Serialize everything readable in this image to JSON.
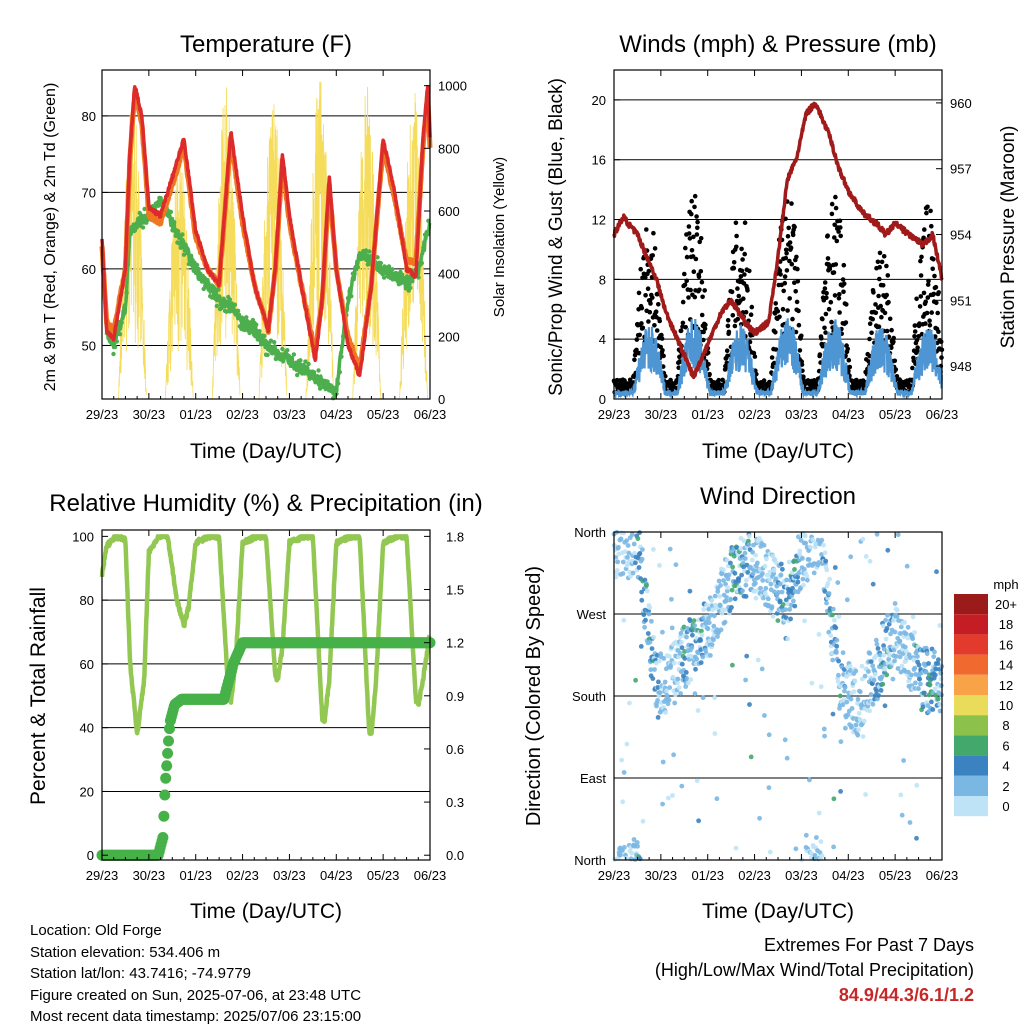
{
  "colors": {
    "temp2m": "#dd2a2a",
    "temp9m": "#f07722",
    "dewpoint": "#4cae4c",
    "solar": "#f5dc5a",
    "wind": "#4d96d3",
    "gust": "#000000",
    "pressure": "#a11a1a",
    "rh": "#92c752",
    "precip": "#46b148"
  },
  "panels": {
    "temperature": {
      "title": "Temperature (F)",
      "xlabel": "Time (Day/UTC)",
      "ylabel_left": "2m & 9m T (Red, Orange) & 2m Td (Green)",
      "ylabel_right": "Solar Insolation (Yellow)"
    },
    "winds": {
      "title": "Winds (mph) & Pressure (mb)",
      "xlabel": "Time (Day/UTC)",
      "ylabel_left": "Sonic/Prop Wind & Gust (Blue, Black)",
      "ylabel_right": "Station Pressure (Maroon)"
    },
    "humidity": {
      "title": "Relative Humidity (%) & Precipitation (in)",
      "xlabel": "Time (Day/UTC)",
      "ylabel_left": "Percent & Total Rainfall"
    },
    "direction": {
      "title": "Wind Direction",
      "xlabel": "Time (Day/UTC)",
      "ylabel_left": "Direction (Colored By Speed)"
    }
  },
  "legend": {
    "title": "mph",
    "labels": [
      "20+",
      "18",
      "16",
      "14",
      "12",
      "10",
      "8",
      "6",
      "4",
      "2",
      "0"
    ],
    "colors": [
      "#9b1b1b",
      "#c41e24",
      "#e23a2c",
      "#f06a30",
      "#f9a349",
      "#e9dc5a",
      "#8cc24b",
      "#43a86b",
      "#3b82c0",
      "#7ab7e3",
      "#bfe3f6"
    ]
  },
  "info": {
    "location": "Location: Old Forge",
    "elevation": "Station elevation: 534.406 m",
    "latlon": "Station lat/lon: 43.7416; -74.9779",
    "created": "Figure created on Sun, 2025-07-06, at 23:48 UTC",
    "recent": "Most recent data timestamp: 2025/07/06 23:15:00"
  },
  "extremes": {
    "title": "Extremes For Past 7 Days",
    "subtitle": "(High/Low/Max Wind/Total Precipitation)",
    "values": "84.9/44.3/6.1/1.2"
  },
  "chart_data": [
    {
      "type": "line",
      "name": "temperature",
      "title": "Temperature (F)",
      "xlabel": "Time (Day/UTC)",
      "ylabel": "2m & 9m T (Red, Orange) & 2m Td (Green)",
      "y2label": "Solar Insolation (Yellow)",
      "x_ticks": [
        "29/23",
        "30/23",
        "01/23",
        "02/23",
        "03/23",
        "04/23",
        "05/23",
        "06/23"
      ],
      "xlim": [
        0,
        7
      ],
      "ylim": [
        43,
        86
      ],
      "y_ticks": [
        50,
        60,
        70,
        80
      ],
      "y2lim": [
        0,
        1050
      ],
      "y2_ticks": [
        0,
        200,
        400,
        600,
        800,
        1000
      ],
      "grid": true,
      "series": [
        {
          "name": "2m T",
          "axis": "left",
          "x": [
            0,
            0.1,
            0.25,
            0.5,
            0.6,
            0.7,
            0.85,
            1,
            1.25,
            1.5,
            1.75,
            2,
            2.25,
            2.5,
            2.75,
            3,
            3.25,
            3.55,
            3.7,
            3.85,
            4,
            4.25,
            4.55,
            4.7,
            4.85,
            5,
            5.25,
            5.5,
            5.75,
            6,
            6.25,
            6.5,
            6.7,
            6.85,
            6.95,
            7
          ],
          "y": [
            64,
            52,
            51,
            60,
            76,
            84,
            80,
            68,
            67,
            72,
            77,
            65,
            60,
            58,
            78,
            67,
            58,
            52,
            60,
            75,
            67,
            58,
            48,
            56,
            72,
            60,
            50,
            46,
            58,
            77,
            70,
            60,
            59,
            77,
            84,
            77
          ]
        },
        {
          "name": "9m T",
          "axis": "left",
          "x": [
            0,
            0.1,
            0.25,
            0.5,
            0.6,
            0.7,
            0.85,
            1,
            1.25,
            1.5,
            1.75,
            2,
            2.25,
            2.5,
            2.75,
            3,
            3.25,
            3.55,
            3.7,
            3.85,
            4,
            4.25,
            4.55,
            4.7,
            4.85,
            5,
            5.25,
            5.5,
            5.75,
            6,
            6.25,
            6.5,
            6.7,
            6.85,
            6.95,
            7
          ],
          "y": [
            63,
            53,
            52,
            60,
            75,
            83,
            79,
            67,
            66,
            71,
            76,
            64,
            60,
            58,
            77,
            66,
            58,
            52,
            60,
            74,
            66,
            58,
            49,
            56,
            71,
            60,
            51,
            47,
            58,
            76,
            69,
            61,
            61,
            76,
            83,
            76
          ]
        },
        {
          "name": "2m Td",
          "axis": "left",
          "x": [
            0,
            0.1,
            0.25,
            0.5,
            0.6,
            0.75,
            1,
            1.25,
            1.5,
            1.75,
            2,
            2.25,
            2.5,
            2.75,
            3,
            3.25,
            3.5,
            3.75,
            4,
            4.25,
            4.5,
            4.75,
            5,
            5.25,
            5.5,
            5.75,
            6,
            6.25,
            6.5,
            6.75,
            7
          ],
          "y": [
            62,
            52,
            50,
            55,
            65,
            66,
            67,
            69,
            66,
            63,
            60,
            58,
            56,
            55,
            53,
            52,
            50,
            49,
            48,
            47,
            46,
            45,
            44,
            56,
            62,
            61,
            60,
            59,
            58,
            60,
            66
          ]
        },
        {
          "name": "Solar Insolation",
          "axis": "right",
          "day_peaks": [
            [
              0.65,
              960
            ],
            [
              1.65,
              790
            ],
            [
              2.65,
              1010
            ],
            [
              3.65,
              980
            ],
            [
              4.65,
              1030
            ],
            [
              5.65,
              1010
            ],
            [
              6.65,
              1000
            ]
          ]
        }
      ]
    },
    {
      "type": "scatter",
      "name": "winds",
      "title": "Winds (mph) & Pressure (mb)",
      "xlabel": "Time (Day/UTC)",
      "ylabel": "Sonic/Prop Wind & Gust (Blue, Black)",
      "y2label": "Station Pressure (Maroon)",
      "x_ticks": [
        "29/23",
        "30/23",
        "01/23",
        "02/23",
        "03/23",
        "04/23",
        "05/23",
        "06/23"
      ],
      "xlim": [
        0,
        7
      ],
      "ylim": [
        0,
        22
      ],
      "y_ticks": [
        0,
        4,
        8,
        12,
        16,
        20
      ],
      "y2lim": [
        946.5,
        961.5
      ],
      "y2_ticks": [
        948,
        951,
        954,
        957,
        960
      ],
      "grid": true,
      "series": [
        {
          "name": "Wind",
          "axis": "left",
          "daily_peak_x": [
            0.75,
            1.7,
            2.7,
            3.7,
            4.7,
            5.7,
            6.7
          ],
          "daily_peak_y": [
            5,
            5.5,
            5,
            5.5,
            5.5,
            5,
            5
          ]
        },
        {
          "name": "Gust",
          "axis": "left",
          "daily_peak_x": [
            0.75,
            1.7,
            2.7,
            3.7,
            4.7,
            5.7,
            6.7
          ],
          "daily_peak_y": [
            12,
            14,
            13,
            15,
            14,
            10,
            13
          ]
        },
        {
          "name": "Station Pressure",
          "axis": "right",
          "x": [
            0,
            0.2,
            0.3,
            0.5,
            0.7,
            0.9,
            1.1,
            1.3,
            1.5,
            1.7,
            1.8,
            2,
            2.3,
            2.5,
            2.8,
            3,
            3.3,
            3.5,
            3.7,
            3.9,
            4.1,
            4.3,
            4.6,
            4.8,
            5,
            5.3,
            5.6,
            5.8,
            6,
            6.3,
            6.6,
            6.8,
            6.9,
            7
          ],
          "y": [
            954,
            954.8,
            954.5,
            954,
            953,
            952,
            950.5,
            949.5,
            948.5,
            947.5,
            948,
            949,
            950.5,
            951,
            950,
            949.5,
            950,
            953,
            956.5,
            957.5,
            959.5,
            960,
            958.5,
            957,
            956,
            955,
            954.5,
            954,
            954.5,
            954,
            953.5,
            954,
            953,
            952
          ]
        }
      ]
    },
    {
      "type": "line",
      "name": "humidity",
      "title": "Relative Humidity (%) & Precipitation (in)",
      "xlabel": "Time (Day/UTC)",
      "ylabel": "Percent & Total Rainfall",
      "x_ticks": [
        "29/23",
        "30/23",
        "01/23",
        "02/23",
        "03/23",
        "04/23",
        "05/23",
        "06/23"
      ],
      "xlim": [
        0,
        7
      ],
      "ylim": [
        -1.5,
        102
      ],
      "y_ticks": [
        0,
        20,
        40,
        60,
        80,
        100
      ],
      "y2lim": [
        -0.027,
        1.836
      ],
      "y2_ticks": [
        0.0,
        0.3,
        0.6,
        0.9,
        1.2,
        1.5,
        1.8
      ],
      "grid": true,
      "series": [
        {
          "name": "Relative Humidity",
          "axis": "left",
          "x": [
            0,
            0.1,
            0.3,
            0.5,
            0.6,
            0.75,
            0.9,
            1,
            1.2,
            1.4,
            1.6,
            1.75,
            1.85,
            2,
            2.3,
            2.5,
            2.7,
            2.75,
            2.85,
            3,
            3.3,
            3.5,
            3.7,
            3.75,
            3.85,
            4,
            4.3,
            4.5,
            4.7,
            4.75,
            4.85,
            5,
            5.3,
            5.5,
            5.7,
            5.75,
            5.85,
            6,
            6.3,
            6.5,
            6.7,
            6.75,
            6.85,
            7
          ],
          "y": [
            88,
            97,
            100,
            99,
            60,
            38,
            55,
            95,
            100,
            100,
            80,
            72,
            78,
            98,
            100,
            100,
            50,
            48,
            60,
            98,
            100,
            100,
            56,
            55,
            65,
            98,
            100,
            100,
            43,
            42,
            55,
            98,
            100,
            100,
            39,
            38,
            55,
            98,
            100,
            100,
            48,
            47,
            55,
            70
          ]
        },
        {
          "name": "Total Precipitation",
          "axis": "right",
          "x": [
            0,
            1.2,
            1.3,
            1.35,
            1.45,
            1.55,
            1.7,
            2.6,
            2.7,
            2.8,
            3.0,
            7
          ],
          "y": [
            0,
            0,
            0.1,
            0.4,
            0.75,
            0.85,
            0.88,
            0.88,
            0.98,
            1.08,
            1.2,
            1.2
          ]
        }
      ]
    },
    {
      "type": "scatter",
      "name": "direction",
      "title": "Wind Direction",
      "xlabel": "Time (Day/UTC)",
      "ylabel": "Direction (Colored By Speed)",
      "x_ticks": [
        "29/23",
        "30/23",
        "01/23",
        "02/23",
        "03/23",
        "04/23",
        "05/23",
        "06/23"
      ],
      "xlim": [
        0,
        7
      ],
      "ylim": [
        0,
        360
      ],
      "y_ticks": [
        "North",
        "East",
        "South",
        "West",
        "North"
      ],
      "grid": true,
      "legend": {
        "title": "mph",
        "placement": "right",
        "labels": [
          "20+",
          "18",
          "16",
          "14",
          "12",
          "10",
          "8",
          "6",
          "4",
          "2",
          "0"
        ]
      }
    }
  ]
}
